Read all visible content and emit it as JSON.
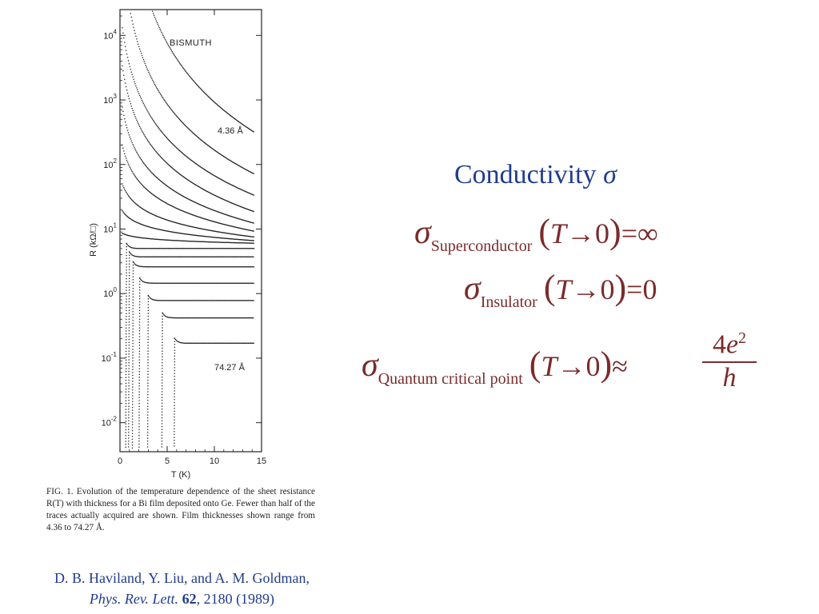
{
  "chart_data": {
    "type": "scatter",
    "panel_label": "BISMUTH",
    "xlabel": "T (K)",
    "ylabel": "R (kΩ/□)",
    "x_ticks": [
      "0",
      "5",
      "10",
      "15"
    ],
    "y_ticks": [
      "10^4",
      "10^3",
      "10^2",
      "10^1",
      "10^0",
      "10^-1",
      "10^-2"
    ],
    "xlim": [
      0,
      15
    ],
    "ylim_log10": [
      -2.45,
      4.4
    ],
    "y_scale": "log",
    "annotations": [
      {
        "text": "4.36 Å",
        "curve": 0
      },
      {
        "text": "74.27 Å",
        "curve": 15
      }
    ],
    "series": [
      {
        "type": "insulating",
        "R_at_15K": 270,
        "exponent": 8.0,
        "T0": 0.0
      },
      {
        "type": "insulating",
        "R_at_15K": 63,
        "exponent": 6.5,
        "T0": 0.3
      },
      {
        "type": "insulating",
        "R_at_15K": 30,
        "exponent": 5.5,
        "T0": 0.6
      },
      {
        "type": "insulating",
        "R_at_15K": 17,
        "exponent": 4.6,
        "T0": 0.5
      },
      {
        "type": "insulating",
        "R_at_15K": 11.5,
        "exponent": 3.5,
        "T0": 0.4
      },
      {
        "type": "insulating",
        "R_at_15K": 8.8,
        "exponent": 2.6,
        "T0": 0.4
      },
      {
        "type": "insulating",
        "R_at_15K": 7.3,
        "exponent": 1.6,
        "T0": 0.4
      },
      {
        "type": "insulating",
        "R_at_15K": 6.5,
        "exponent": 0.9,
        "T0": 0.4
      },
      {
        "type": "flat",
        "R_at_15K": 6.0,
        "exponent": 0.3,
        "T0": 0.4
      },
      {
        "type": "superconducting",
        "R_normal": 5.0,
        "Tc": 0.7
      },
      {
        "type": "superconducting",
        "R_normal": 3.7,
        "Tc": 1.0
      },
      {
        "type": "superconducting",
        "R_normal": 2.6,
        "Tc": 1.4
      },
      {
        "type": "superconducting",
        "R_normal": 1.45,
        "Tc": 2.1
      },
      {
        "type": "superconducting",
        "R_normal": 0.78,
        "Tc": 3.0
      },
      {
        "type": "superconducting",
        "R_normal": 0.42,
        "Tc": 4.5
      },
      {
        "type": "superconducting",
        "R_normal": 0.17,
        "Tc": 5.8
      }
    ]
  },
  "figure_caption": "FIG. 1.  Evolution of the temperature dependence of the sheet resistance R(T) with thickness for a Bi film deposited onto Ge.  Fewer than half of the traces actually acquired are shown.  Film thicknesses shown range from 4.36 to 74.27 Å.",
  "citation": {
    "authors": "D. B. Haviland, Y. Liu, and A. M. Goldman,",
    "journal": "Phys. Rev. Lett.",
    "volume": "62",
    "pages_year": ", 2180 (1989)"
  },
  "slide": {
    "title": "Conductivity",
    "title_symbol": "σ",
    "equations": [
      {
        "sigma": "σ",
        "subscript": "Superconductor",
        "arg_var": "T",
        "arrow": "→",
        "arg_val": "0",
        "relation": "=",
        "rhs": "∞"
      },
      {
        "sigma": "σ",
        "subscript": "Insulator",
        "arg_var": "T",
        "arrow": "→",
        "arg_val": "0",
        "relation": "=",
        "rhs": "0"
      },
      {
        "sigma": "σ",
        "subscript": "Quantum critical point",
        "arg_var": "T",
        "arrow": "→",
        "arg_val": "0",
        "relation": "≈",
        "frac_num_coef": "4",
        "frac_num_var": "e",
        "frac_num_exp": "2",
        "frac_den": "h"
      }
    ]
  },
  "colors": {
    "title": "#1f3c8f",
    "equations": "#7a2b2b",
    "citation": "#1f3c8f",
    "plot_ink": "#222222"
  }
}
